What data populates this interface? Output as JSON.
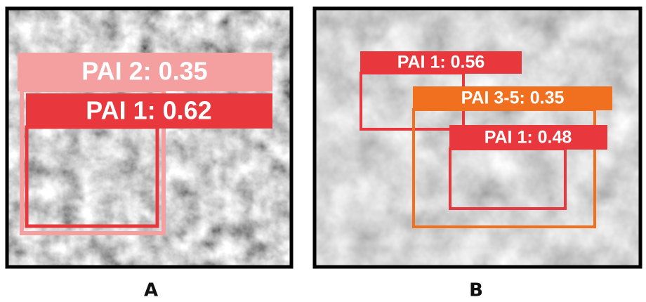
{
  "panels": [
    {
      "label": "A",
      "detections": [
        {
          "text": "PAI 2: 0.35"
        },
        {
          "text": "PAI 1: 0.62"
        }
      ]
    },
    {
      "label": "B",
      "detections": [
        {
          "text": "PAI 1: 0.56"
        },
        {
          "text": "PAI 3-5: 0.35"
        },
        {
          "text": "PAI 1: 0.48"
        }
      ]
    }
  ]
}
